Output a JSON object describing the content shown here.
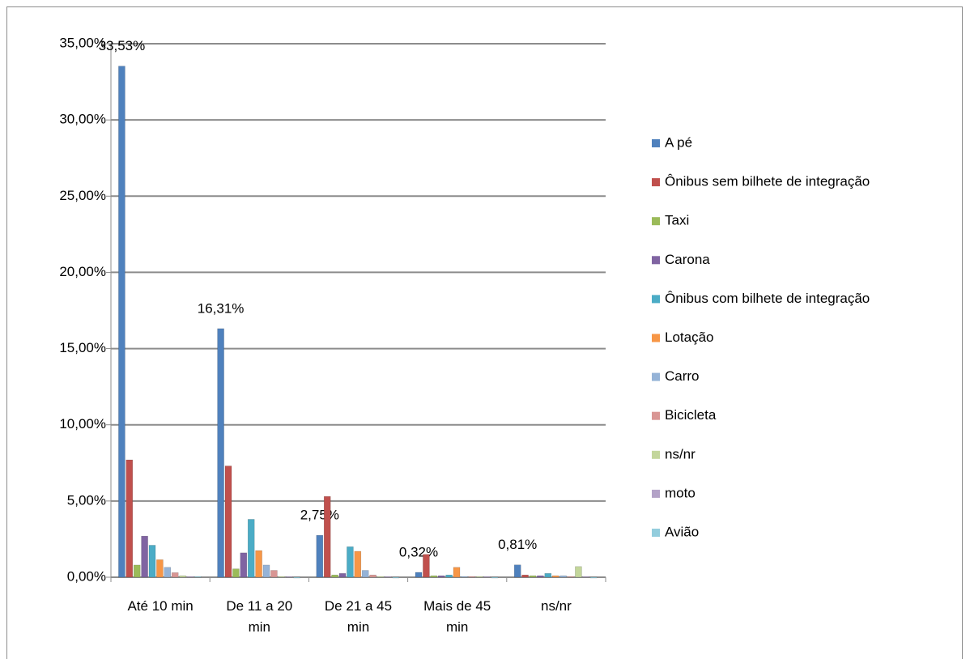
{
  "chart_data": {
    "type": "bar",
    "categories": [
      "Até 10 min",
      "De 11 a 20 min",
      "De 21 a 45 min",
      "Mais de 45 min",
      "ns/nr"
    ],
    "series": [
      {
        "name": "A pé",
        "color": "#4F81BD",
        "values": [
          33.53,
          16.31,
          2.75,
          0.32,
          0.81
        ],
        "value_labels": [
          "33,53%",
          "16,31%",
          "2,75%",
          "0,32%",
          "0,81%"
        ]
      },
      {
        "name": "Ônibus sem bilhete de integração",
        "color": "#C0504D",
        "values": [
          7.7,
          7.3,
          5.3,
          1.5,
          0.15
        ]
      },
      {
        "name": "Taxi",
        "color": "#9BBB59",
        "values": [
          0.8,
          0.55,
          0.15,
          0.1,
          0.1
        ]
      },
      {
        "name": "Carona",
        "color": "#8064A2",
        "values": [
          2.7,
          1.6,
          0.25,
          0.1,
          0.1
        ]
      },
      {
        "name": "Ônibus com bilhete de integração",
        "color": "#4BACC6",
        "values": [
          2.1,
          3.8,
          2.0,
          0.15,
          0.25
        ]
      },
      {
        "name": "Lotação",
        "color": "#F79646",
        "values": [
          1.15,
          1.75,
          1.7,
          0.65,
          0.1
        ]
      },
      {
        "name": "Carro",
        "color": "#95B3D7",
        "values": [
          0.65,
          0.8,
          0.45,
          0.05,
          0.1
        ]
      },
      {
        "name": "Bicicleta",
        "color": "#D99694",
        "values": [
          0.3,
          0.45,
          0.15,
          0.05,
          0.05
        ]
      },
      {
        "name": "ns/nr",
        "color": "#C3D69B",
        "values": [
          0.1,
          0.05,
          0.05,
          0.05,
          0.7
        ]
      },
      {
        "name": "moto",
        "color": "#B3A2C7",
        "values": [
          0.05,
          0.05,
          0.05,
          0.05,
          0.05
        ]
      },
      {
        "name": "Avião",
        "color": "#93CDDD",
        "values": [
          0.05,
          0,
          0,
          0,
          0
        ]
      }
    ],
    "ylim": [
      0,
      35
    ],
    "yticks": [
      {
        "value": 0,
        "label": "0,00%"
      },
      {
        "value": 5,
        "label": "5,00%"
      },
      {
        "value": 10,
        "label": "10,00%"
      },
      {
        "value": 15,
        "label": "15,00%"
      },
      {
        "value": 20,
        "label": "20,00%"
      },
      {
        "value": 25,
        "label": "25,00%"
      },
      {
        "value": 30,
        "label": "30,00%"
      },
      {
        "value": 35,
        "label": "35,00%"
      }
    ],
    "grid": true,
    "legend": "right"
  }
}
